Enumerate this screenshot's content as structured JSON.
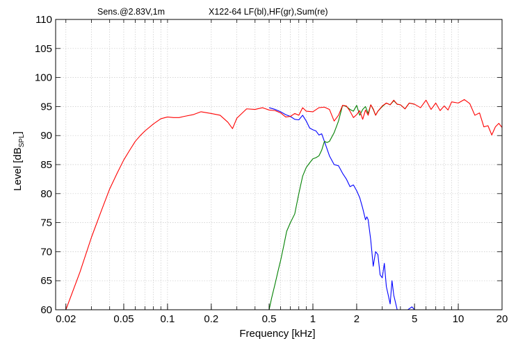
{
  "chart_data": {
    "type": "line",
    "title_left": "Sens.@2.83V,1m",
    "title_right": "X122-64 LF(bl),HF(gr),Sum(re)",
    "xlabel": "Frequency [kHz]",
    "ylabel": {
      "main": "Level [dB",
      "sub": "SPL",
      "close": "]"
    },
    "xscale": "log",
    "xlim": [
      0.017,
      20
    ],
    "ylim": [
      60,
      110
    ],
    "grid": true,
    "xticks": [
      0.02,
      0.05,
      0.1,
      0.2,
      0.5,
      1,
      2,
      5,
      10,
      20
    ],
    "xtick_labels": [
      "0.02",
      "0.05",
      "0.1",
      "0.2",
      "0.5",
      "1",
      "2",
      "5",
      "10",
      "20"
    ],
    "yticks": [
      60,
      65,
      70,
      75,
      80,
      85,
      90,
      95,
      100,
      105,
      110
    ],
    "ytick_labels": [
      "60",
      "65",
      "70",
      "75",
      "80",
      "85",
      "90",
      "95",
      "100",
      "105",
      "110"
    ],
    "series": [
      {
        "name": "Sum(re)",
        "color": "#ff0000",
        "x": [
          0.02,
          0.025,
          0.03,
          0.035,
          0.04,
          0.045,
          0.05,
          0.055,
          0.06,
          0.065,
          0.07,
          0.08,
          0.09,
          0.1,
          0.11,
          0.12,
          0.13,
          0.15,
          0.17,
          0.2,
          0.23,
          0.26,
          0.28,
          0.3,
          0.35,
          0.4,
          0.45,
          0.5,
          0.55,
          0.6,
          0.65,
          0.7,
          0.75,
          0.8,
          0.85,
          0.9,
          1.0,
          1.1,
          1.2,
          1.3,
          1.4,
          1.5,
          1.6,
          1.7,
          1.8,
          1.9,
          2.0,
          2.1,
          2.2,
          2.3,
          2.4,
          2.5,
          2.6,
          2.7,
          2.8,
          3.0,
          3.2,
          3.4,
          3.6,
          3.8,
          4.0,
          4.3,
          4.6,
          5.0,
          5.5,
          6.0,
          6.5,
          7.0,
          7.5,
          8.0,
          8.5,
          9.0,
          10,
          11,
          12,
          13,
          14,
          15,
          16,
          17,
          18,
          19,
          20
        ],
        "y": [
          60,
          66.5,
          72.5,
          77,
          80.8,
          83.5,
          85.8,
          87.5,
          89,
          90,
          90.8,
          92,
          92.9,
          93.2,
          93.1,
          93.1,
          93.3,
          93.6,
          94.1,
          93.8,
          93.5,
          92.3,
          91.2,
          93,
          94.6,
          94.5,
          94.8,
          94.4,
          94.3,
          93.9,
          93.2,
          93.3,
          93.8,
          93.5,
          94.8,
          94.2,
          94.1,
          94.8,
          94.9,
          94.5,
          92.5,
          93.5,
          95.2,
          95.1,
          94.2,
          93.1,
          93.6,
          94.3,
          92.8,
          94.4,
          93.5,
          95.3,
          94.6,
          93.5,
          94.2,
          95.1,
          95.6,
          95.3,
          96.1,
          95.4,
          95.3,
          94.6,
          95.6,
          95.4,
          94.8,
          96.1,
          94.5,
          95.6,
          94.3,
          95.1,
          94.4,
          95.8,
          95.6,
          96.2,
          95.5,
          93.5,
          93.9,
          91.5,
          91.7,
          90.1,
          91.5,
          92.1,
          91.4
        ]
      },
      {
        "name": "LF(bl)",
        "color": "#0000ff",
        "x": [
          0.5,
          0.55,
          0.6,
          0.65,
          0.7,
          0.75,
          0.8,
          0.85,
          0.9,
          0.95,
          1.0,
          1.05,
          1.1,
          1.15,
          1.2,
          1.3,
          1.4,
          1.5,
          1.6,
          1.7,
          1.8,
          1.9,
          2.0,
          2.1,
          2.2,
          2.3,
          2.35,
          2.4,
          2.5,
          2.6,
          2.7,
          2.8,
          2.9,
          3.0,
          3.1,
          3.2,
          3.3,
          3.4,
          3.5,
          3.6,
          3.8,
          4.0,
          4.2,
          4.5,
          4.8,
          5.0
        ],
        "y": [
          94.8,
          94.5,
          94.1,
          93.6,
          93.3,
          92.8,
          92.7,
          93.5,
          92.5,
          91.3,
          91.0,
          90.8,
          90.1,
          90.3,
          89.0,
          86.5,
          85.0,
          84.8,
          83.5,
          82.5,
          81.2,
          81.5,
          80.5,
          79.3,
          77.5,
          75.5,
          76.0,
          75.5,
          72.0,
          67.5,
          70.0,
          69.5,
          66.0,
          65.5,
          68.0,
          64.0,
          62.5,
          61.0,
          65.0,
          62.5,
          59,
          58,
          58.5,
          59.5,
          60.5,
          60.0
        ]
      },
      {
        "name": "HF(gr)",
        "color": "#008000",
        "x": [
          0.5,
          0.52,
          0.55,
          0.58,
          0.6,
          0.63,
          0.66,
          0.7,
          0.75,
          0.8,
          0.85,
          0.9,
          0.95,
          1.0,
          1.05,
          1.1,
          1.15,
          1.2,
          1.25,
          1.3,
          1.4,
          1.5,
          1.6,
          1.7,
          1.8,
          1.9,
          2.0,
          2.1,
          2.2,
          2.3,
          2.4,
          2.5,
          2.6,
          2.7,
          2.8,
          3.0,
          3.2,
          3.4,
          3.6,
          3.8,
          4.0,
          4.3,
          4.6,
          5.0
        ],
        "y": [
          60,
          62,
          64.5,
          67,
          68.5,
          71,
          73.5,
          75.0,
          76.5,
          80.0,
          83.0,
          84.5,
          85.3,
          86.0,
          86.2,
          86.5,
          87.5,
          89.0,
          88.8,
          89.0,
          90.5,
          92.5,
          95.2,
          95.0,
          94.5,
          94.2,
          95.2,
          93.5,
          94.5,
          95.0,
          93.8,
          95.3,
          94.5,
          93.5,
          94.2,
          95.0,
          95.6,
          95.3,
          96.0,
          95.4,
          95.3,
          94.6,
          95.6,
          95.4
        ]
      }
    ]
  }
}
